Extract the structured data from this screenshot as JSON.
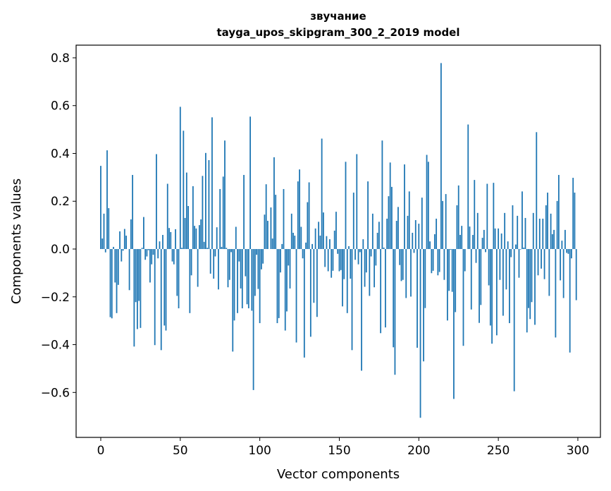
{
  "chart_data": {
    "type": "bar",
    "title": [
      "звучание",
      "tayga_upos_skipgram_300_2_2019 model"
    ],
    "xlabel": "Vector components",
    "ylabel": "Components values",
    "xlim": [
      -15.5,
      314.2
    ],
    "ylim": [
      -0.788,
      0.853
    ],
    "xticks": [
      0,
      50,
      100,
      150,
      200,
      250,
      300
    ],
    "xtick_labels": [
      "0",
      "50",
      "100",
      "150",
      "200",
      "250",
      "300"
    ],
    "yticks": [
      -0.6,
      -0.4,
      -0.2,
      0.0,
      0.2,
      0.4,
      0.6,
      0.8
    ],
    "ytick_labels": [
      "−0.6",
      "−0.4",
      "−0.2",
      "0.0",
      "0.2",
      "0.4",
      "0.6",
      "0.8"
    ],
    "grid": false,
    "bar_color": "#1f77b4",
    "values": [
      0.348,
      0.044,
      0.148,
      -0.014,
      0.413,
      0.171,
      -0.285,
      -0.29,
      0.009,
      -0.14,
      -0.268,
      -0.15,
      0.074,
      -0.052,
      -0.007,
      0.084,
      0.056,
      0.0,
      -0.172,
      0.124,
      0.31,
      -0.408,
      -0.222,
      -0.335,
      -0.217,
      -0.33,
      0.005,
      0.134,
      -0.045,
      -0.031,
      -0.005,
      -0.14,
      -0.064,
      -0.024,
      -0.402,
      0.397,
      -0.039,
      0.032,
      -0.423,
      0.059,
      -0.32,
      -0.341,
      0.273,
      0.088,
      0.071,
      -0.052,
      -0.064,
      0.083,
      -0.196,
      -0.248,
      0.595,
      0.005,
      0.495,
      0.13,
      0.32,
      0.18,
      -0.268,
      -0.11,
      0.263,
      0.097,
      0.086,
      -0.158,
      0.1,
      0.124,
      0.306,
      0.03,
      0.402,
      0.005,
      0.372,
      -0.103,
      0.551,
      -0.124,
      -0.031,
      0.091,
      -0.169,
      0.251,
      0.009,
      0.303,
      0.454,
      0.005,
      -0.16,
      -0.129,
      -0.013,
      -0.429,
      -0.299,
      0.093,
      -0.268,
      -0.052,
      -0.165,
      -0.248,
      0.31,
      -0.114,
      -0.231,
      -0.248,
      0.554,
      -0.258,
      -0.59,
      -0.196,
      -0.024,
      -0.167,
      -0.31,
      -0.085,
      -0.061,
      0.144,
      0.271,
      0.118,
      0.0,
      0.174,
      0.044,
      0.384,
      0.227,
      -0.31,
      -0.289,
      -0.098,
      0.021,
      0.251,
      -0.341,
      -0.261,
      -0.069,
      -0.165,
      0.148,
      0.068,
      0.056,
      -0.391,
      0.283,
      0.333,
      0.093,
      -0.039,
      -0.454,
      0.027,
      0.196,
      0.279,
      -0.367,
      0.021,
      -0.225,
      0.086,
      -0.284,
      0.114,
      0.056,
      0.462,
      0.153,
      -0.075,
      0.054,
      -0.093,
      0.041,
      -0.12,
      -0.091,
      0.077,
      0.156,
      -0.02,
      -0.093,
      -0.088,
      -0.24,
      -0.126,
      0.365,
      -0.268,
      0.012,
      -0.124,
      -0.423,
      0.236,
      -0.045,
      0.397,
      -0.064,
      -0.013,
      -0.509,
      0.041,
      -0.158,
      -0.098,
      0.283,
      -0.196,
      -0.031,
      0.148,
      -0.16,
      -0.069,
      0.068,
      0.114,
      -0.352,
      0.454,
      0.006,
      -0.328,
      0.127,
      0.221,
      0.362,
      0.26,
      -0.411,
      -0.526,
      0.118,
      0.176,
      -0.067,
      -0.134,
      -0.129,
      0.354,
      -0.205,
      0.139,
      0.241,
      -0.199,
      0.068,
      -0.016,
      0.121,
      -0.413,
      0.106,
      -0.706,
      0.215,
      -0.47,
      -0.247,
      0.394,
      0.365,
      0.032,
      -0.101,
      -0.091,
      0.062,
      0.127,
      -0.11,
      -0.096,
      0.778,
      0.201,
      -0.129,
      0.23,
      -0.299,
      -0.175,
      -0.003,
      -0.179,
      -0.627,
      -0.264,
      0.183,
      0.266,
      0.059,
      0.097,
      -0.405,
      -0.093,
      0.0,
      0.521,
      0.094,
      -0.253,
      0.059,
      0.289,
      -0.058,
      0.151,
      -0.309,
      -0.234,
      0.047,
      0.08,
      -0.013,
      0.273,
      -0.152,
      -0.32,
      -0.396,
      0.277,
      0.086,
      -0.361,
      0.086,
      -0.129,
      0.065,
      -0.279,
      0.151,
      -0.169,
      0.032,
      -0.31,
      -0.034,
      0.183,
      -0.595,
      0.019,
      0.139,
      -0.12,
      -0.002,
      0.241,
      0.006,
      0.13,
      -0.349,
      -0.247,
      -0.293,
      -0.222,
      0.151,
      -0.317,
      0.489,
      -0.11,
      0.127,
      -0.082,
      0.127,
      -0.126,
      0.183,
      0.236,
      -0.196,
      0.148,
      0.062,
      0.08,
      -0.37,
      0.201,
      0.31,
      -0.131,
      0.035,
      -0.205,
      0.08,
      -0.016,
      -0.02,
      -0.433,
      -0.039,
      0.298,
      0.236,
      -0.214
    ]
  }
}
